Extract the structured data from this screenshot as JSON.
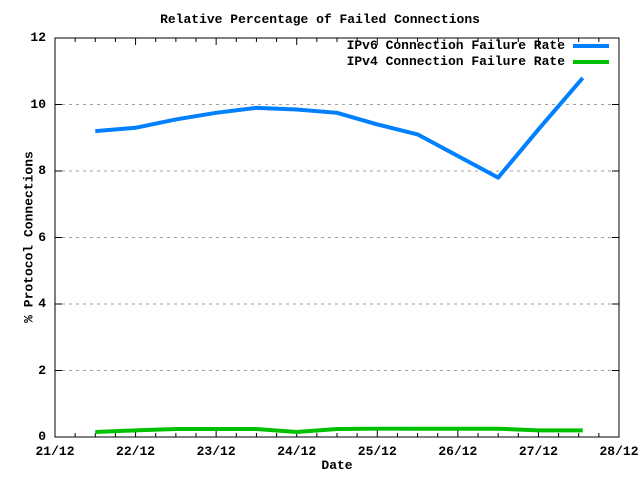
{
  "chart_data": {
    "type": "line",
    "title": "Relative Percentage of Failed Connections",
    "xlabel": "Date",
    "ylabel": "% Protocol Connections",
    "xlim_days": [
      0,
      7
    ],
    "ylim": [
      0,
      12
    ],
    "x_tick_labels": [
      "21/12",
      "22/12",
      "23/12",
      "24/12",
      "25/12",
      "26/12",
      "27/12",
      "28/12"
    ],
    "y_tick_values": [
      0,
      2,
      4,
      6,
      8,
      10,
      12
    ],
    "y_tick_labels": [
      "0",
      "2",
      "4",
      "6",
      "8",
      "10",
      "12"
    ],
    "grid_y_values": [
      2,
      4,
      6,
      8,
      10
    ],
    "x_minor_step_days": 0.25,
    "grid": "horizontal-dashed",
    "grid_color": "#a0a0a0",
    "axis_color": "#000000",
    "legend_position": "top-right-inside",
    "x_days_after_21_12": [
      0.5,
      1.0,
      1.5,
      2.0,
      2.5,
      3.0,
      3.5,
      4.0,
      4.5,
      5.0,
      5.5,
      6.0,
      6.55
    ],
    "series": [
      {
        "name": "IPv6 Connection Failure Rate",
        "color": "#0080ff",
        "values": [
          9.2,
          9.3,
          9.55,
          9.75,
          9.9,
          9.85,
          9.75,
          9.4,
          9.1,
          8.45,
          7.8,
          9.25,
          10.8
        ]
      },
      {
        "name": "IPv4 Connection Failure Rate",
        "color": "#00c000",
        "values": [
          0.15,
          0.2,
          0.24,
          0.24,
          0.24,
          0.15,
          0.24,
          0.25,
          0.25,
          0.25,
          0.25,
          0.2,
          0.2
        ]
      }
    ]
  }
}
